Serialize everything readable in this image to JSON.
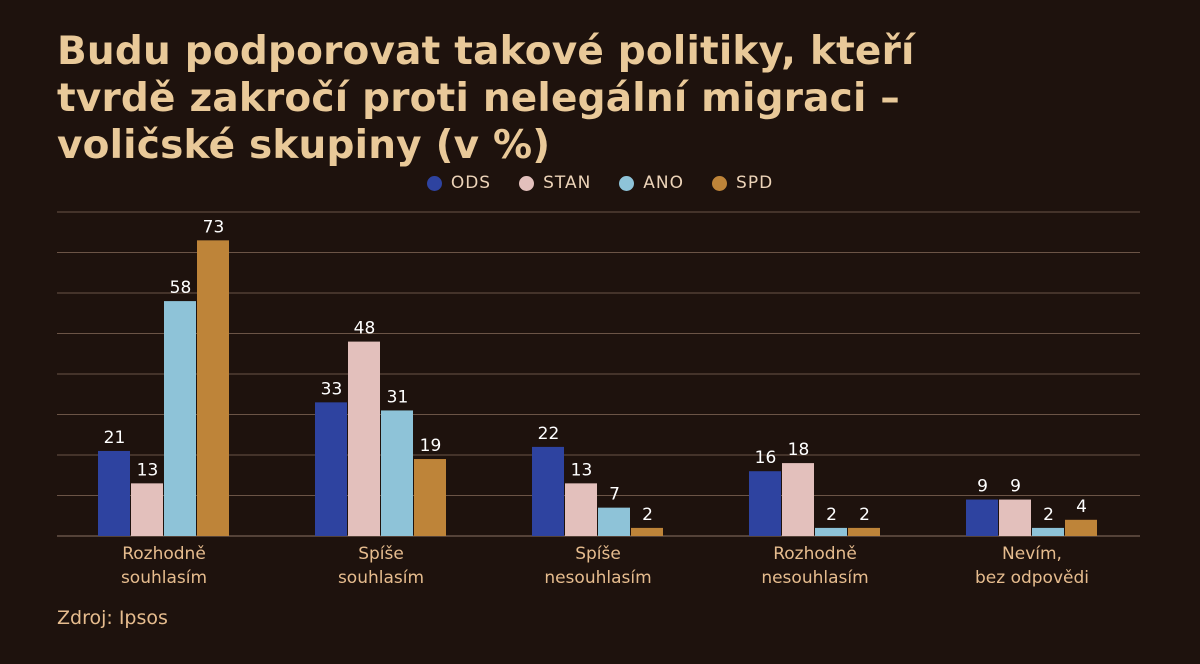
{
  "title_lines": [
    "Budu podporovat takové politiky, kteří",
    "tvrdě zakročí proti nelegální migraci –",
    "voličské skupiny (v %)"
  ],
  "source": "Zdroj: Ipsos",
  "colors": {
    "background": "#1e120d",
    "title": "#e9c999",
    "grid": "#6b5446",
    "ODS": "#2e43a0",
    "STAN": "#e3c0bc",
    "ANO": "#8ec3d8",
    "SPD": "#be8439"
  },
  "chart_data": {
    "type": "bar",
    "title": "Budu podporovat takové politiky, kteří tvrdě zakročí proti nelegální migraci – voličské skupiny (v %)",
    "categories": [
      [
        "Rozhodně",
        "souhlasím"
      ],
      [
        "Spíše",
        "souhlasím"
      ],
      [
        "Spíše",
        "nesouhlasím"
      ],
      [
        "Rozhodně",
        "nesouhlasím"
      ],
      [
        "Nevím,",
        "bez odpovědi"
      ]
    ],
    "series": [
      {
        "name": "ODS",
        "values": [
          21,
          33,
          22,
          16,
          9
        ]
      },
      {
        "name": "STAN",
        "values": [
          13,
          48,
          13,
          18,
          9
        ]
      },
      {
        "name": "ANO",
        "values": [
          58,
          31,
          7,
          2,
          2
        ]
      },
      {
        "name": "SPD",
        "values": [
          73,
          19,
          2,
          2,
          4
        ]
      }
    ],
    "ylim": [
      0,
      80
    ],
    "y_gridlines": [
      0,
      10,
      20,
      30,
      40,
      50,
      60,
      70,
      80
    ],
    "y_tick_labels_shown": false,
    "legend_position": "top-center",
    "grid": true
  }
}
